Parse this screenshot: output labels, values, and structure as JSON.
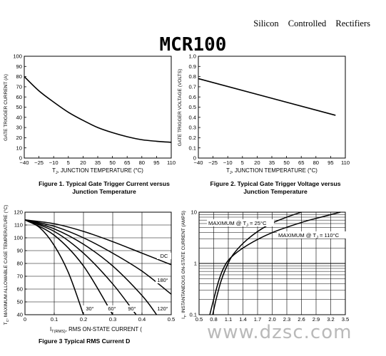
{
  "header": {
    "doc_title": "Silicon Controlled Rectifiers",
    "part_number": "MCR100"
  },
  "watermark": "www.dzsc.com",
  "chart_data": [
    {
      "type": "line",
      "figure": "fig1",
      "caption_line1": "Figure 1. Typical Gate Trigger Current versus",
      "caption_line2": "Junction Temperature",
      "xlabel_prefix": "T",
      "xlabel_sub": "J",
      "xlabel_rest": ", JUNCTION TEMPERATURE (°C)",
      "ylabel": "GATE TRIGGER CURRENT (A)",
      "xlim": [
        -40,
        110
      ],
      "ylim": [
        0,
        100
      ],
      "xticks": [
        "−40",
        "−25",
        "−10",
        "5",
        "20",
        "35",
        "50",
        "65",
        "80",
        "95",
        "110"
      ],
      "yticks": [
        "0",
        "10",
        "20",
        "30",
        "40",
        "50",
        "60",
        "70",
        "80",
        "90",
        "100"
      ],
      "grid": false,
      "series": [
        {
          "x": [
            -40,
            -25,
            -10,
            5,
            20,
            35,
            50,
            65,
            80,
            95,
            110
          ],
          "y": [
            80,
            66,
            55,
            45,
            37,
            30,
            25,
            21,
            18,
            16.5,
            15.5
          ]
        }
      ]
    },
    {
      "type": "line",
      "figure": "fig2",
      "caption_line1": "Figure 2. Typical Gate Trigger Voltage versus",
      "caption_line2": "Junction Temperature",
      "xlabel_prefix": "T",
      "xlabel_sub": "J",
      "xlabel_rest": ", JUNCTION TEMPERATURE (°C)",
      "ylabel": "GATE TRIGGER VOLTAGE (VOLTS)",
      "xlim": [
        -40,
        110
      ],
      "ylim": [
        0,
        1.0
      ],
      "xticks": [
        "−40",
        "−25",
        "−10",
        "5",
        "20",
        "35",
        "50",
        "65",
        "80",
        "95",
        "110"
      ],
      "yticks": [
        "0",
        "0.1",
        "0.2",
        "0.3",
        "0.4",
        "0.5",
        "0.6",
        "0.7",
        "0.8",
        "0.9",
        "1.0"
      ],
      "grid": false,
      "series": [
        {
          "x": [
            -40,
            100
          ],
          "y": [
            0.78,
            0.42
          ]
        }
      ]
    },
    {
      "type": "line",
      "figure": "fig3",
      "caption_line1": "Figure 3 Typical RMS Current D",
      "xlabel_prefix": "I",
      "xlabel_sub": "T(RMS)",
      "xlabel_rest": ", RMS ON-STATE CURRENT (",
      "ylabel_prefix": "T",
      "ylabel_sub": "C",
      "ylabel_rest": ", MAXIMUM ALLOWABLE CASE TEMPERATURE (°C)",
      "xlim": [
        0,
        0.5
      ],
      "ylim": [
        40,
        120
      ],
      "xticks": [
        "0",
        "0.1",
        "0.2",
        "0.3",
        "0.4",
        "0.5"
      ],
      "yticks": [
        "40",
        "50",
        "60",
        "70",
        "80",
        "90",
        "100",
        "110",
        "120"
      ],
      "grid": true,
      "series": [
        {
          "name": "DC",
          "x": [
            0,
            0.1,
            0.2,
            0.3,
            0.4,
            0.5
          ],
          "y": [
            114,
            111,
            105,
            97,
            88,
            79
          ]
        },
        {
          "name": "180°",
          "x": [
            0,
            0.1,
            0.2,
            0.3,
            0.4,
            0.5
          ],
          "y": [
            114,
            109,
            100,
            88,
            74,
            56
          ]
        },
        {
          "name": "120°",
          "x": [
            0,
            0.1,
            0.2,
            0.3,
            0.4,
            0.45
          ],
          "y": [
            114,
            107,
            95,
            78,
            55,
            40
          ]
        },
        {
          "name": "90°",
          "x": [
            0,
            0.1,
            0.2,
            0.3,
            0.38
          ],
          "y": [
            114,
            105,
            88,
            64,
            40
          ]
        },
        {
          "name": "60°",
          "x": [
            0,
            0.1,
            0.2,
            0.3
          ],
          "y": [
            114,
            102,
            78,
            40
          ]
        },
        {
          "name": "30°",
          "x": [
            0,
            0.05,
            0.1,
            0.15,
            0.2
          ],
          "y": [
            114,
            108,
            94,
            72,
            40
          ]
        }
      ]
    },
    {
      "type": "line",
      "figure": "fig4",
      "xlabel_prefix": "V",
      "xlabel_sub": "T",
      "xlabel_rest": ", INSTANTANEOUS ON-STATE VOLTAGE (VOLTS)",
      "ylabel_prefix": "I",
      "ylabel_sub": "T",
      "ylabel_rest": ", INSTANTANEOUS ON-STATE CURRENT (AMPS)",
      "xlim": [
        0.5,
        3.5
      ],
      "ylim": [
        0.1,
        10
      ],
      "yscale": "log",
      "xticks": [
        "0.5",
        "0.8",
        "1.1",
        "1.4",
        "1.7",
        "2.0",
        "2.3",
        "2.6",
        "2.9",
        "3.2",
        "3.5"
      ],
      "yticks": [
        "0.1",
        "1",
        "10"
      ],
      "grid": true,
      "series": [
        {
          "name_prefix": "MAXIMUM @ T",
          "name_sub": "J",
          "name_rest": " = 25°C",
          "x": [
            0.78,
            0.85,
            0.95,
            1.05,
            1.2,
            1.5,
            1.9,
            2.3,
            2.6
          ],
          "y": [
            0.1,
            0.2,
            0.45,
            0.8,
            1.5,
            3.0,
            5.5,
            8.0,
            10.0
          ]
        },
        {
          "name_prefix": "MAXIMUM @ T",
          "name_sub": "J",
          "name_rest": " = 110°C",
          "x": [
            0.72,
            0.8,
            0.9,
            1.0,
            1.15,
            1.5,
            2.0,
            2.6,
            3.0,
            3.4
          ],
          "y": [
            0.1,
            0.2,
            0.45,
            0.8,
            1.3,
            2.3,
            4.0,
            6.3,
            8.0,
            10.0
          ]
        }
      ]
    }
  ]
}
